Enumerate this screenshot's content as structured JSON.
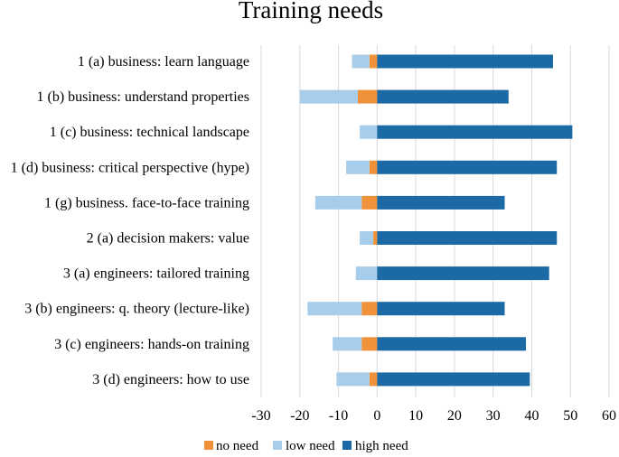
{
  "chart_data": {
    "type": "bar",
    "orientation": "horizontal",
    "stacked": "diverging",
    "title": "Training needs",
    "xlabel": "",
    "ylabel": "",
    "xlim": [
      -30,
      60
    ],
    "xticks": [
      -30,
      -20,
      -10,
      0,
      10,
      20,
      30,
      40,
      50,
      60
    ],
    "grid": true,
    "legend_position": "bottom",
    "categories": [
      "1 (a) business: learn language",
      "1 (b) business: understand properties",
      "1 (c) business: technical landscape",
      "1 (d) business: critical perspective (hype)",
      "1 (g) business. face-to-face training",
      "2 (a) decision makers: value",
      "3 (a) engineers: tailored training",
      "3 (b) engineers: q. theory (lecture-like)",
      "3 (c) engineers: hands-on training",
      "3 (d) engineers: how to use"
    ],
    "series": [
      {
        "name": "no need",
        "color": "#f0923a",
        "values": [
          -2,
          -5,
          0,
          -2,
          -4,
          -1,
          0,
          -4,
          -4,
          -2
        ]
      },
      {
        "name": "low need",
        "color": "#a7cdea",
        "values": [
          -4.5,
          -15,
          -4.5,
          -6,
          -12,
          -3.5,
          -5.5,
          -14,
          -7.5,
          -8.5
        ]
      },
      {
        "name": "high need",
        "color": "#1b6aa6",
        "values": [
          45.5,
          34,
          50.5,
          46.5,
          33,
          46.5,
          44.5,
          33,
          38.5,
          39.5
        ]
      }
    ]
  }
}
